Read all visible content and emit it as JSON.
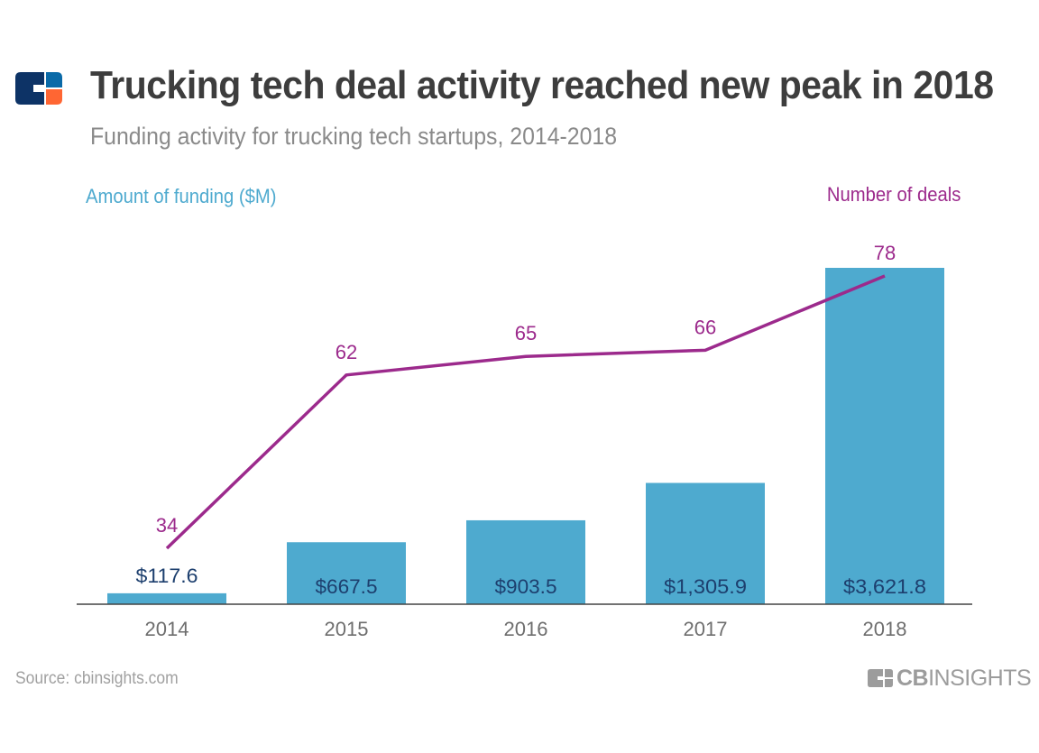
{
  "header": {
    "title": "Trucking tech deal activity reached new peak in 2018",
    "subtitle": "Funding activity for trucking tech startups, 2014-2018",
    "logo_icon": "cb-insights-logo-icon"
  },
  "footer": {
    "source": "Source: cbinsights.com",
    "brand_bold": "CB",
    "brand_light": "INSIGHTS",
    "brand_icon": "cb-insights-logo-icon"
  },
  "colors": {
    "bar": "#4eaacf",
    "line": "#9c2a8c",
    "bar_label": "#1d3f6e",
    "axis_text": "#6e6e6e",
    "title": "#3d3d3d",
    "logo_dark": "#0d3366",
    "logo_blue": "#0a6aa8",
    "logo_orange": "#ff6633"
  },
  "chart_data": {
    "type": "bar",
    "title": "Trucking tech deal activity reached new peak in 2018",
    "subtitle": "Funding activity for trucking tech startups, 2014-2018",
    "categories": [
      "2014",
      "2015",
      "2016",
      "2017",
      "2018"
    ],
    "series": [
      {
        "name": "Amount of funding ($M)",
        "type": "bar",
        "axis": "left",
        "values": [
          117.6,
          667.5,
          903.5,
          1305.9,
          3621.8
        ],
        "labels": [
          "$117.6",
          "$667.5",
          "$903.5",
          "$1,305.9",
          "$3,621.8"
        ]
      },
      {
        "name": "Number of deals",
        "type": "line",
        "axis": "right",
        "values": [
          34,
          62,
          65,
          66,
          78
        ],
        "labels": [
          "34",
          "62",
          "65",
          "66",
          "78"
        ]
      }
    ],
    "ylabel_left": "Amount of funding ($M)",
    "ylabel_right": "Number of deals",
    "xlabel": "",
    "grid": false,
    "legend": "none"
  }
}
